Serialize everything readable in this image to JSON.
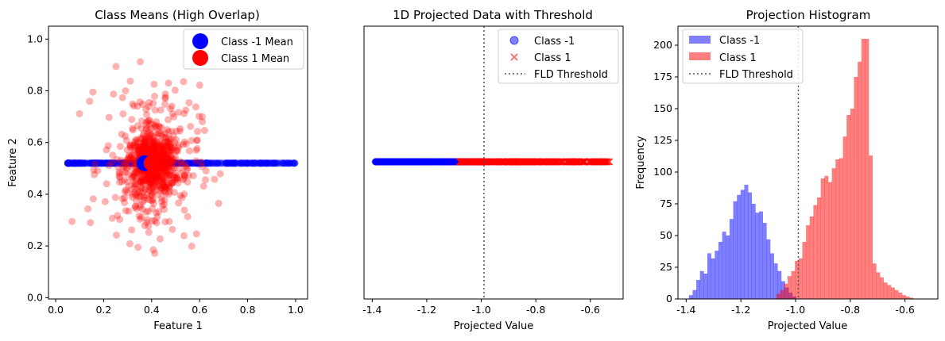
{
  "chart_data": [
    {
      "type": "scatter",
      "title": "Class Means (High Overlap)",
      "xlabel": "Feature 1",
      "ylabel": "Feature 2",
      "xlim": [
        -0.03,
        1.05
      ],
      "ylim": [
        -0.005,
        1.05
      ],
      "xticks": [
        "0.0",
        "0.2",
        "0.4",
        "0.6",
        "0.8",
        "1.0"
      ],
      "yticks": [
        "0.0",
        "0.2",
        "0.4",
        "0.6",
        "0.8",
        "1.0"
      ],
      "legend_position": "top-right",
      "legend": [
        "Class -1 Mean",
        "Class 1 Mean"
      ],
      "series": [
        {
          "name": "Class -1",
          "color": "#0000ff",
          "y_value": 0.52,
          "x_range": [
            0.05,
            1.0
          ]
        },
        {
          "name": "Class 1",
          "color": "#ff0000",
          "center": [
            0.4,
            0.52
          ],
          "spread": [
            0.1,
            0.15
          ]
        },
        {
          "name": "Class -1 Mean",
          "color": "#0000ff",
          "x": 0.37,
          "y": 0.52
        },
        {
          "name": "Class 1 Mean",
          "color": "#ff0000",
          "x": 0.4,
          "y": 0.52
        }
      ]
    },
    {
      "type": "scatter",
      "title": "1D Projected Data with Threshold",
      "xlabel": "Projected Value",
      "xlim": [
        -1.43,
        -0.48
      ],
      "xticks": [
        "-1.4",
        "-1.2",
        "-1.0",
        "-0.8",
        "-0.6"
      ],
      "threshold": -0.99,
      "legend_position": "top-right",
      "legend": [
        "Class -1",
        "Class 1",
        "FLD Threshold"
      ],
      "series": [
        {
          "name": "Class -1",
          "color": "#0000ff",
          "marker": "circle",
          "x_range": [
            -1.39,
            -0.99
          ]
        },
        {
          "name": "Class 1",
          "color": "#ff0000",
          "marker": "x",
          "x_range": [
            -1.08,
            -0.53
          ]
        }
      ]
    },
    {
      "type": "bar",
      "title": "Projection Histogram",
      "xlabel": "Projected Value",
      "ylabel": "Frequency",
      "xlim": [
        -1.43,
        -0.48
      ],
      "ylim": [
        0,
        215
      ],
      "xticks": [
        "-1.4",
        "-1.2",
        "-1.0",
        "-0.8",
        "-0.6"
      ],
      "yticks": [
        "0",
        "25",
        "50",
        "75",
        "100",
        "125",
        "150",
        "175",
        "200"
      ],
      "threshold": -0.99,
      "legend_position": "top-left",
      "legend": [
        "Class -1",
        "Class 1",
        "FLD Threshold"
      ],
      "series": [
        {
          "name": "Class -1",
          "color": "#0000ff",
          "bin_start": -1.39,
          "bin_width": 0.0135,
          "values": [
            3,
            7,
            15,
            22,
            20,
            36,
            32,
            38,
            45,
            53,
            50,
            63,
            77,
            82,
            86,
            90,
            84,
            75,
            68,
            69,
            60,
            47,
            36,
            28,
            22,
            14,
            9,
            5,
            2
          ]
        },
        {
          "name": "Class 1",
          "color": "#ff0000",
          "bin_start": -1.07,
          "bin_width": 0.0135,
          "values": [
            4,
            7,
            12,
            18,
            22,
            30,
            32,
            45,
            58,
            65,
            74,
            80,
            95,
            97,
            92,
            103,
            110,
            111,
            128,
            145,
            150,
            175,
            187,
            205,
            205,
            113,
            28,
            21,
            17,
            13,
            11,
            9,
            7,
            5,
            3,
            2,
            1
          ]
        }
      ]
    }
  ]
}
